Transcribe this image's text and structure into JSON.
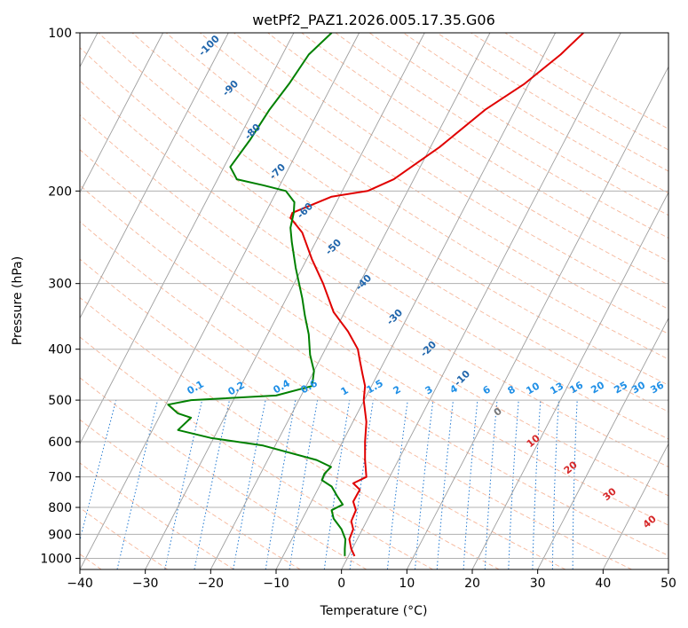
{
  "chart_data": {
    "type": "line",
    "title": "wetPf2_PAZ1.2026.005.17.35.G06",
    "xlabel": "Temperature (°C)",
    "ylabel": "Pressure (hPa)",
    "xlim": [
      -40,
      50
    ],
    "ylim": [
      1050,
      100
    ],
    "yscale": "log",
    "grid": true,
    "x_ticks": [
      "−40",
      "−30",
      "−20",
      "−10",
      "0",
      "10",
      "20",
      "30",
      "40",
      "50"
    ],
    "y_ticks": [
      "1000",
      "900",
      "800",
      "700",
      "600",
      "500",
      "400",
      "300",
      "200",
      "100"
    ],
    "series": [
      {
        "color": "#e00000",
        "x": [
          2,
          1.5,
          1.2,
          1.8,
          1.5,
          2.2,
          1.8,
          2.8,
          1.8,
          3.8,
          3.6,
          3.6,
          3.8,
          3.4,
          3.6,
          3.2,
          2.8,
          2.5,
          1.0,
          -1.2,
          -2.8,
          -4.5,
          -6.0,
          -7.8,
          -7.5,
          -1.5,
          4.0,
          8.0,
          15.0,
          22.0,
          28.0,
          33.5,
          37.0
        ],
        "y": [
          990,
          960,
          920,
          880,
          850,
          810,
          780,
          740,
          720,
          700,
          650,
          600,
          550,
          500,
          470,
          445,
          420,
          400,
          370,
          340,
          300,
          270,
          240,
          225,
          220,
          205,
          200,
          190,
          165,
          140,
          125,
          110,
          100
        ]
      },
      {
        "color": "#008000",
        "x": [
          0.5,
          0.5,
          0.6,
          0.0,
          -1.2,
          -1.5,
          0.2,
          -0.7,
          -1.5,
          -3.0,
          -2.6,
          -1.6,
          -3.8,
          -12,
          -20,
          -25,
          -23,
          -25,
          -26.5,
          -23,
          -10,
          -4.5,
          -4.2,
          -4.5,
          -4.8,
          -5.0,
          -5.6,
          -6.0,
          -7.0,
          -7.6,
          -7.8,
          -7.3,
          -7.2,
          -8.5,
          -12,
          -16,
          -17,
          -14,
          -11,
          -8,
          -5,
          -1.5
        ],
        "y": [
          990,
          960,
          920,
          880,
          840,
          810,
          790,
          760,
          730,
          710,
          690,
          670,
          650,
          610,
          590,
          570,
          540,
          530,
          510,
          500,
          490,
          470,
          440,
          425,
          410,
          375,
          345,
          320,
          280,
          250,
          235,
          220,
          210,
          200,
          195,
          190,
          180,
          160,
          140,
          125,
          110,
          100
        ]
      }
    ],
    "mixing_ratio_labels": [
      "0.1",
      "0.2",
      "0.4",
      "0.6",
      "1",
      "1.5",
      "2",
      "3",
      "4",
      "6",
      "8",
      "10",
      "13",
      "16",
      "20",
      "25",
      "30",
      "36"
    ],
    "moist_adiabat_labels": [
      "-100",
      "-90",
      "-80",
      "-70",
      "-60",
      "-50",
      "-40",
      "-30",
      "-20",
      "-10"
    ],
    "zero_label": "0",
    "dry_adiabat_labels": [
      "10",
      "20",
      "30",
      "40"
    ]
  }
}
